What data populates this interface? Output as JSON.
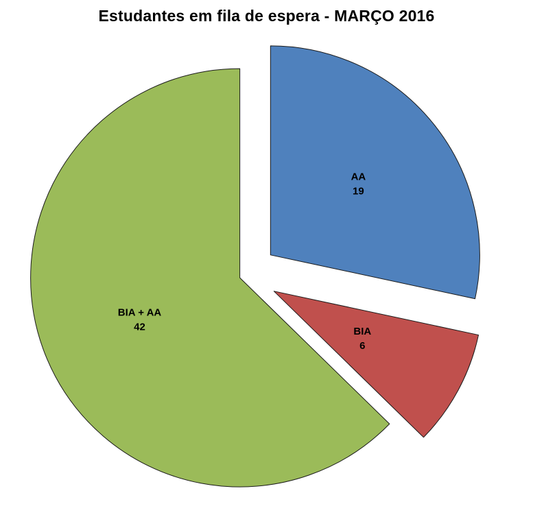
{
  "title": "Estudantes em fila de espera -  MARÇO 2016",
  "chart_data": {
    "type": "pie",
    "title": "Estudantes em fila de espera -  MARÇO 2016",
    "total": 67,
    "start_angle_deg": 0,
    "direction": "clockwise",
    "exploded": true,
    "legend": "none",
    "slices": [
      {
        "label": "AA",
        "value": 19,
        "color": "#4F81BD"
      },
      {
        "label": "BIA",
        "value": 6,
        "color": "#C0504D"
      },
      {
        "label": "BIA + AA",
        "value": 42,
        "color": "#9BBB59"
      }
    ]
  }
}
